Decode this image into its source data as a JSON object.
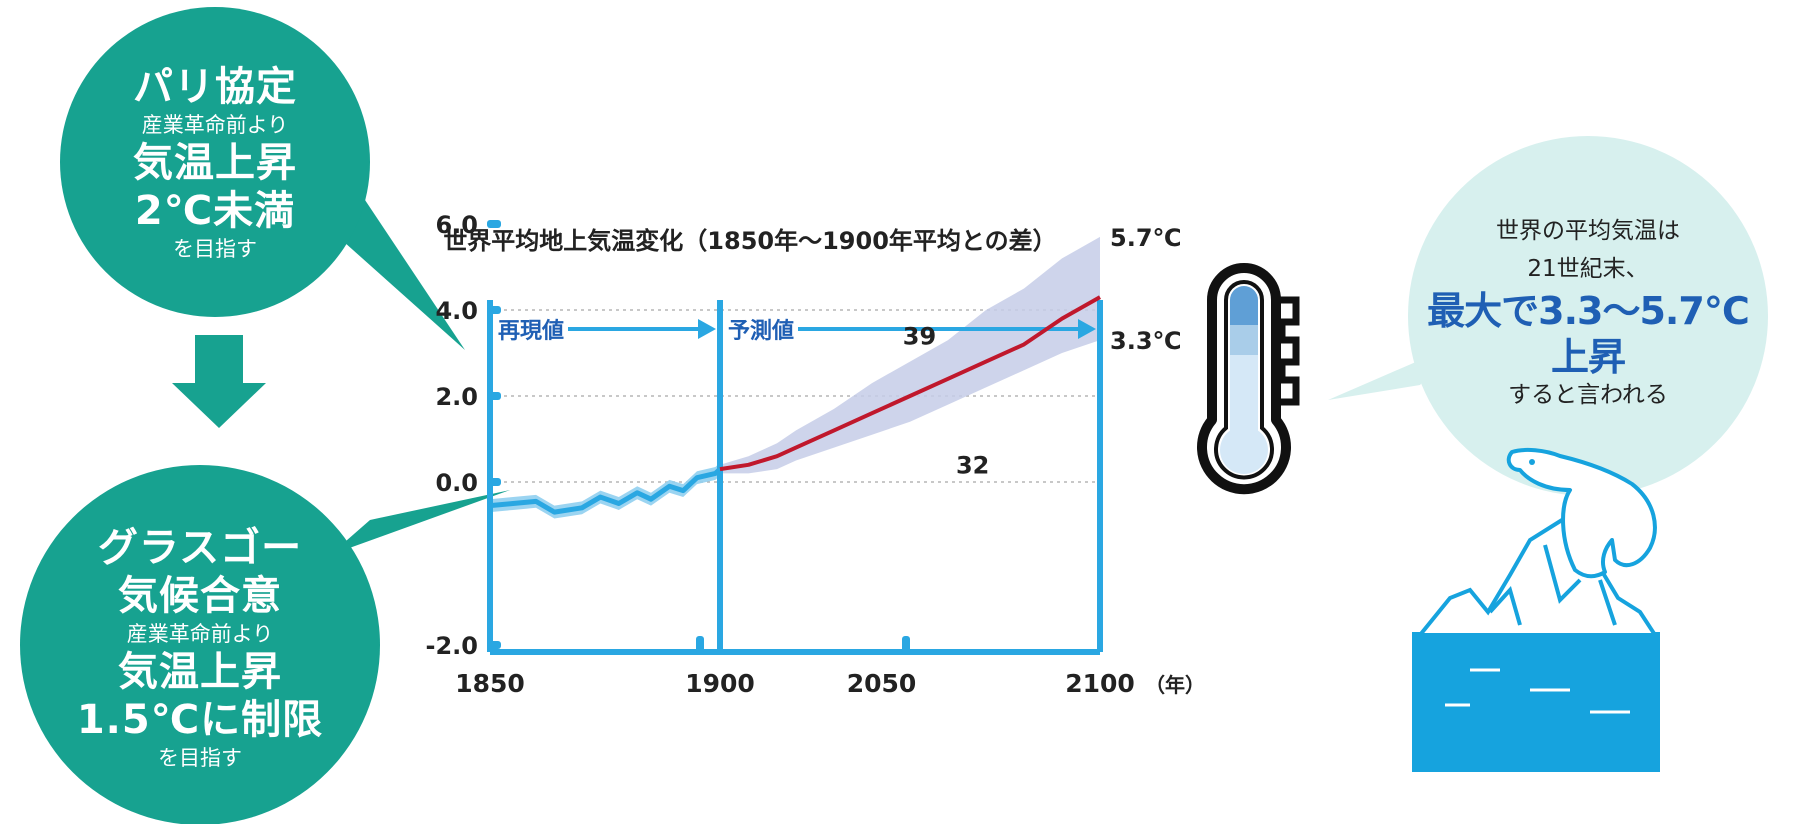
{
  "left_panel": {
    "paris": {
      "title": "パリ協定",
      "sub1": "産業革命前より",
      "line1": "気温上昇",
      "line2": "2℃未満",
      "sub2": "を目指す"
    },
    "glasgow": {
      "title1": "グラスゴー",
      "title2": "気候合意",
      "sub1": "産業革命前より",
      "line1": "気温上昇",
      "line2": "1.5℃に制限",
      "sub2": "を目指す"
    }
  },
  "right_panel": {
    "line1": "世界の平均気温は",
    "line2": "21世紀末、",
    "line3": "最大で3.3～5.7℃",
    "line4": "上昇",
    "line5": "すると言われる"
  },
  "colors": {
    "teal": "#17a290",
    "hist_blue": "#2aa7e2",
    "hist_band": "#90cff0",
    "proj_red": "#c0182c",
    "proj_band": "#c5cde8",
    "right_bubble": "#d7f0ee",
    "text_blue": "#1f5fb4",
    "ice_blue": "#16a3de"
  },
  "chart_data": {
    "type": "line",
    "title": "世界平均地上気温変化（1850年～1900年平均との差）",
    "xlabel": "",
    "ylabel": "",
    "x_unit": "（年）",
    "xlim": [
      1850,
      2100
    ],
    "ylim": [
      -2.0,
      6.0
    ],
    "y_ticks": [
      "6.0",
      "4.0",
      "2.0",
      "0.0",
      "-2.0"
    ],
    "y_tick_values": [
      6,
      4,
      2,
      0,
      -2
    ],
    "x_ticks": [
      "1850",
      "1900",
      "2050",
      "2100"
    ],
    "gridlines": "dotted",
    "periods": [
      {
        "label": "再現値",
        "x": [
          1850,
          1900
        ]
      },
      {
        "label": "予測値",
        "x": [
          1900,
          2100
        ]
      }
    ],
    "series": [
      {
        "x": [
          1850,
          1855,
          1860,
          1864,
          1870,
          1874,
          1878,
          1882,
          1885,
          1889,
          1892,
          1895,
          1899,
          1900
        ],
        "y": [
          -0.55,
          -0.5,
          -0.45,
          -0.7,
          -0.6,
          -0.35,
          -0.5,
          -0.25,
          -0.4,
          -0.1,
          -0.2,
          0.1,
          0.2,
          0.3
        ],
        "lower": [
          -0.7,
          -0.65,
          -0.6,
          -0.85,
          -0.75,
          -0.5,
          -0.65,
          -0.4,
          -0.55,
          -0.25,
          -0.35,
          -0.05,
          0.05,
          0.15
        ],
        "upper": [
          -0.4,
          -0.35,
          -0.3,
          -0.55,
          -0.45,
          -0.2,
          -0.35,
          -0.1,
          -0.25,
          0.05,
          -0.05,
          0.25,
          0.35,
          0.45
        ]
      },
      {
        "x": [
          1900,
          1915,
          1930,
          1940,
          1960,
          1980,
          2000,
          2020,
          2040,
          2060,
          2080,
          2100
        ],
        "y": [
          0.3,
          0.4,
          0.6,
          0.8,
          1.2,
          1.6,
          2.0,
          2.4,
          2.8,
          3.2,
          3.8,
          4.3
        ],
        "lower": [
          0.2,
          0.2,
          0.3,
          0.5,
          0.8,
          1.1,
          1.4,
          1.8,
          2.2,
          2.6,
          3.0,
          3.3
        ],
        "upper": [
          0.4,
          0.6,
          0.9,
          1.2,
          1.7,
          2.3,
          2.8,
          3.3,
          4.0,
          4.5,
          5.2,
          5.7
        ]
      }
    ],
    "annotations": [
      {
        "text": "39",
        "x": 2005,
        "y": 3.2
      },
      {
        "text": "32",
        "x": 2033,
        "y": 0.2
      }
    ],
    "right_labels": [
      {
        "text": "5.7℃",
        "y": 5.7
      },
      {
        "text": "3.3℃",
        "y": 3.3
      }
    ]
  }
}
